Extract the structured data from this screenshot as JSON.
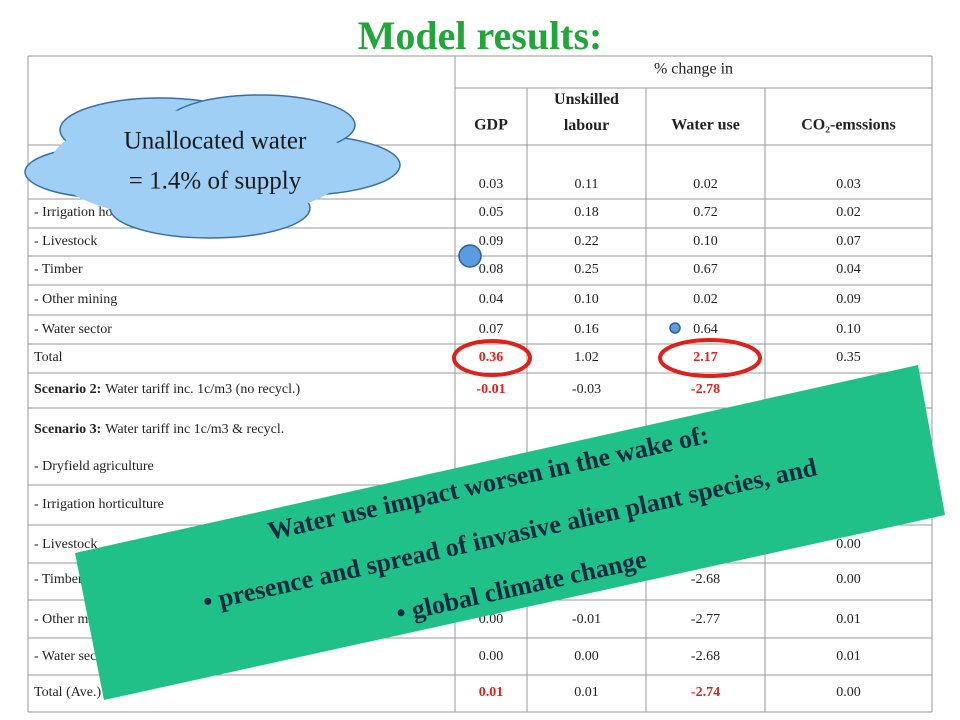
{
  "title": "Model results:",
  "table": {
    "group_header": "% change in",
    "columns": [
      "GDP",
      "Unskilled labour",
      "Water use",
      "CO₂-emssions"
    ],
    "rows": [
      {
        "cells": [
          "0.03",
          "0.11",
          "0.02",
          "0.03"
        ]
      },
      {
        "label": "- Irrigation horticulture",
        "cells": [
          "0.05",
          "0.18",
          "0.72",
          "0.02"
        ]
      },
      {
        "label": "- Livestock",
        "cells": [
          "0.09",
          "0.22",
          "0.10",
          "0.07"
        ]
      },
      {
        "label": "- Timber",
        "cells": [
          "0.08",
          "0.25",
          "0.67",
          "0.04"
        ]
      },
      {
        "label": "- Other mining",
        "cells": [
          "0.04",
          "0.10",
          "0.02",
          "0.09"
        ]
      },
      {
        "label": "- Water sector",
        "cells": [
          "0.07",
          "0.16",
          "0.64",
          "0.10"
        ]
      },
      {
        "label": "Total",
        "cells": [
          "0.36",
          "1.02",
          "2.17",
          "0.35"
        ],
        "emphasis": [
          0,
          2
        ]
      },
      {
        "label_bold": "Scenario 2:",
        "label": "Water tariff inc. 1c/m3 (no recycl.)",
        "cells": [
          "-0.01",
          "-0.03",
          "-2.78",
          null
        ],
        "emphasis": [
          0,
          2
        ]
      },
      {
        "label_bold": "Scenario 3:",
        "label": "Water tariff inc 1c/m3 & recycl.",
        "cells": [
          null,
          null,
          null,
          null
        ]
      },
      {
        "label": "- Dryfield agriculture",
        "cells": [
          null,
          null,
          null,
          null
        ]
      },
      {
        "label": "- Irrigation horticulture",
        "cells": [
          null,
          null,
          null,
          null
        ]
      },
      {
        "label": "- Livestock",
        "cells": [
          null,
          null,
          null,
          "0.00"
        ]
      },
      {
        "label": "- Timber",
        "cells": [
          null,
          null,
          "-2.68",
          "0.00"
        ]
      },
      {
        "label": "- Other mining",
        "cells": [
          "0.00",
          "-0.01",
          "-2.77",
          "0.01"
        ]
      },
      {
        "label": "- Water sector",
        "cells": [
          "0.00",
          "0.00",
          "-2.68",
          "0.01"
        ]
      },
      {
        "label": "Total (Ave.)",
        "cells": [
          "0.01",
          "0.01",
          "-2.74",
          "0.00"
        ],
        "emphasis": [
          0,
          2
        ]
      }
    ]
  },
  "callout": {
    "lines": [
      "Unallocated water",
      "= 1.4% of supply"
    ]
  },
  "banner": {
    "lines": [
      "Water use impact worsen in the wake of:",
      "• presence and spread of invasive alien plant species, and",
      "• global climate change"
    ]
  }
}
